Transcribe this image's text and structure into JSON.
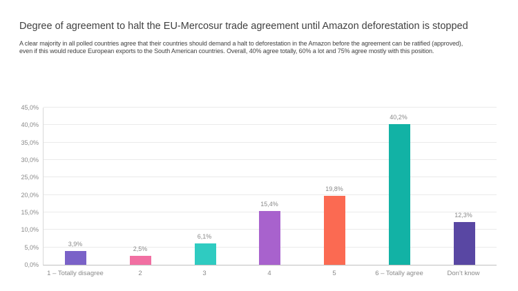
{
  "page": {
    "title": "Degree of agreement to halt the EU-Mercosur trade agreement until Amazon deforestation is stopped",
    "subtitle_line1": "A clear majority in all polled countries agree that their countries should demand a halt to deforestation in the Amazon before the agreement can be ratified (approved),",
    "subtitle_line2": "even if this would reduce European exports to the South American countries. Overall, 40% agree totally, 60% a lot and 75% agree mostly with this position."
  },
  "chart_data": {
    "type": "bar",
    "title": "Degree of agreement to halt the EU-Mercosur trade agreement until Amazon deforestation is stopped",
    "categories": [
      "1 – Totally disagree",
      "2",
      "3",
      "4",
      "5",
      "6 – Totally agree",
      "Don’t know"
    ],
    "values": [
      3.9,
      2.5,
      6.1,
      15.4,
      19.8,
      40.2,
      12.3
    ],
    "value_labels": [
      "3,9%",
      "2,5%",
      "6,1%",
      "15,4%",
      "19,8%",
      "40,2%",
      "12,3%"
    ],
    "bar_colors": [
      "#7A62C8",
      "#F16FA2",
      "#2FCBC1",
      "#A862CD",
      "#FB6A52",
      "#12B2A5",
      "#5947A3"
    ],
    "xlabel": "",
    "ylabel": "",
    "ylim": [
      0,
      45
    ],
    "ytick_step": 5,
    "ytick_labels": [
      "0,0%",
      "5,0%",
      "10,0%",
      "15,0%",
      "20,0%",
      "25,0%",
      "30,0%",
      "35,0%",
      "40,0%",
      "45,0%"
    ],
    "grid": true,
    "legend": false,
    "colors": {
      "text_dark": "#404040",
      "text_muted": "#898989",
      "gridline": "#EAEAEA",
      "axis_line": "#BFBFBF",
      "background": "#FFFFFF"
    }
  }
}
